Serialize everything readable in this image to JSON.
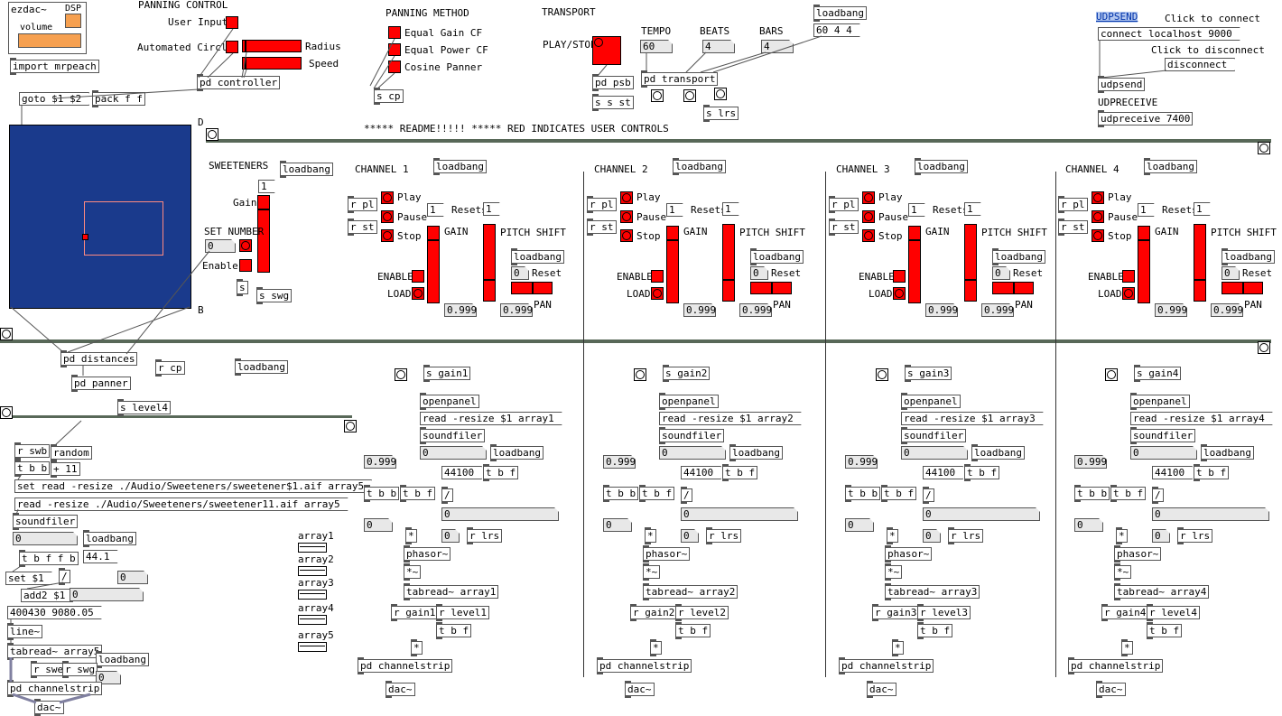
{
  "colors": {
    "control_red": "#ff0000",
    "pad_blue": "#1a3a8c",
    "rule_green": "#586858"
  },
  "ezdac": {
    "title": "ezdac~",
    "dsp": "DSP",
    "volume": "volume"
  },
  "top": {
    "import": "import mrpeach",
    "goto": "goto $1 $2",
    "pack": "pack f f",
    "panning_control": "PANNING CONTROL",
    "user_input": "User Input",
    "automated_circle": "Automated Circle",
    "radius": "Radius",
    "speed": "Speed",
    "pd_controller": "pd controller",
    "panning_method": "PANNING METHOD",
    "equal_gain": "Equal Gain CF",
    "equal_power": "Equal Power CF",
    "cosine": "Cosine Panner",
    "s_cp": "s cp",
    "transport": "TRANSPORT",
    "play_stop": "PLAY/STOP",
    "tempo": "TEMPO",
    "beats": "BEATS",
    "bars": "BARS",
    "tempo_val": "60",
    "beats_val": "4",
    "bars_val": "4",
    "loadbang": "loadbang",
    "lb_msg": "60 4 4",
    "pd_psb": "pd psb",
    "s_s_st": "s s st",
    "pd_transport": "pd transport",
    "s_lrs": "s lrs",
    "readme": "***** README!!!!! ***** RED INDICATES USER CONTROLS",
    "udpsend_label": "UDPSEND",
    "click_connect": "Click to connect",
    "connect_msg": "connect localhost 9000",
    "click_disconnect": "Click to disconnect",
    "disconnect": "disconnect",
    "udpsend": "udpsend",
    "udpreceive_label": "UDPRECEIVE",
    "udpreceive": "udpreceive 7400",
    "D": "D",
    "B": "B"
  },
  "sweeteners": {
    "title": "SWEETENERS",
    "gain": "Gain",
    "loadbang": "loadbang",
    "one": "1",
    "set_number": "SET NUMBER",
    "zero": "0",
    "enable": "Enable",
    "s": "s",
    "s_swg": "s swg"
  },
  "lower_left": {
    "pd_distances": "pd distances",
    "r_cp": "r cp",
    "pd_panner": "pd panner",
    "s_level4": "s level4",
    "loadbang": "loadbang",
    "r_swb": "r swb",
    "random": "random",
    "t_b_b": "t b b",
    "plus11": "+ 11",
    "set_read": "set read -resize ./Audio/Sweeteners/sweetener$1.aif array5",
    "read": "read -resize ./Audio/Sweeteners/sweetener11.aif array5",
    "soundfiler": "soundfiler",
    "zero": "0",
    "t_b_f_f_b": "t b f f b",
    "loadbang2": "loadbang",
    "v441": "44.1",
    "set1": "set $1",
    "slash": "/",
    "add2": "add2 $1",
    "line_msg": "400430 9080.05",
    "line": "line~",
    "tabread": "tabread~ array5",
    "r_swe": "r swe",
    "r_swg": "r swg",
    "loadbang3": "loadbang",
    "pd_channelstrip": "pd channelstrip",
    "dac": "dac~",
    "arrays": [
      "array1",
      "array2",
      "array3",
      "array4",
      "array5"
    ]
  },
  "channels": [
    {
      "title": "CHANNEL 1",
      "n": "1"
    },
    {
      "title": "CHANNEL 2",
      "n": "2"
    },
    {
      "title": "CHANNEL 3",
      "n": "3"
    },
    {
      "title": "CHANNEL 4",
      "n": "4"
    }
  ],
  "channel_common": {
    "loadbang": "loadbang",
    "r_pl": "r pl",
    "r_st": "r st",
    "play": "Play",
    "pause": "Pause",
    "stop": "Stop",
    "one": "1",
    "resets": "Resets",
    "gain": "GAIN",
    "pitch_shift": "PITCH SHIFT",
    "zero": "0",
    "reset": "Reset",
    "enable": "ENABLE",
    "load": "LOAD",
    "pan": "PAN",
    "val999": "0.999",
    "openpanel": "openpanel",
    "soundfiler": "soundfiler",
    "v44100": "44100",
    "t_b_f": "t b f",
    "t_b_b": "t b b",
    "slash": "/",
    "r_lrs": "r lrs",
    "star": "*",
    "phasor": "phasor~",
    "star_tilde": "*~",
    "pd_channelstrip": "pd channelstrip",
    "dac": "dac~"
  }
}
